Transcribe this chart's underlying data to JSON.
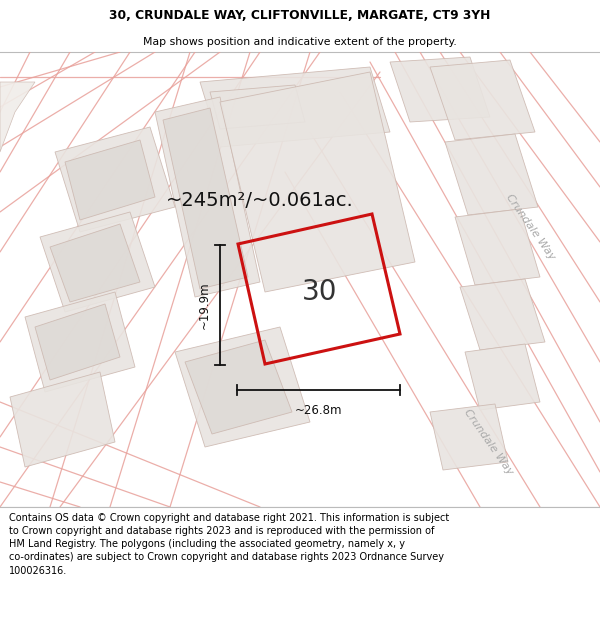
{
  "title_line1": "30, CRUNDALE WAY, CLIFTONVILLE, MARGATE, CT9 3YH",
  "title_line2": "Map shows position and indicative extent of the property.",
  "area_text": "~245m²/~0.061ac.",
  "label_30": "30",
  "dim_width": "~26.8m",
  "dim_height": "~19.9m",
  "road_label1": "Crundale Way",
  "road_label2": "Crundale Way",
  "footer_line1": "Contains OS data © Crown copyright and database right 2021. This information is subject",
  "footer_line2": "to Crown copyright and database rights 2023 and is reproduced with the permission of",
  "footer_line3": "HM Land Registry. The polygons (including the associated geometry, namely x, y",
  "footer_line4": "co-ordinates) are subject to Crown copyright and database rights 2023 Ordnance Survey",
  "footer_line5": "100026316.",
  "map_bg": "#f7f5f3",
  "title_bg": "#ffffff",
  "footer_bg": "#ffffff",
  "road_line_color": "#e8a09a",
  "property_color": "#cc1111",
  "building_fill": "#e8e4e0",
  "building_edge": "#ccb8b0",
  "plot_edge": "#e8a09a"
}
